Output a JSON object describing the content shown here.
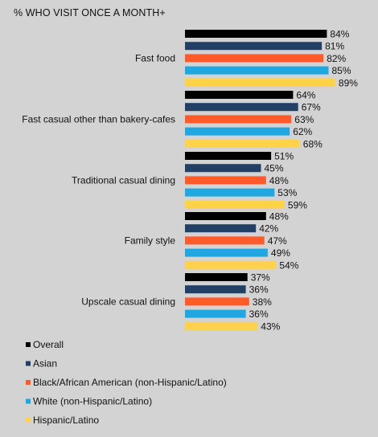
{
  "chart_data": {
    "type": "bar",
    "orientation": "horizontal",
    "title": "% WHO VISIT ONCE A MONTH+",
    "categories": [
      "Fast food",
      "Fast casual other than bakery-cafes",
      "Traditional casual dining",
      "Family style",
      "Upscale casual dining"
    ],
    "series": [
      {
        "name": "Overall",
        "color": "#000000",
        "values": [
          84,
          64,
          51,
          48,
          37
        ]
      },
      {
        "name": "Asian",
        "color": "#223f66",
        "values": [
          81,
          67,
          45,
          42,
          36
        ]
      },
      {
        "name": "Black/African American (non-Hispanic/Latino)",
        "color": "#ff5a2a",
        "values": [
          82,
          63,
          48,
          47,
          38
        ]
      },
      {
        "name": "White (non-Hispanic/Latino)",
        "color": "#1ea7e1",
        "values": [
          85,
          62,
          53,
          49,
          36
        ]
      },
      {
        "name": "Hispanic/Latino",
        "color": "#ffd24a",
        "values": [
          89,
          68,
          59,
          54,
          43
        ]
      }
    ],
    "value_suffix": "%",
    "xlim": [
      0,
      100
    ],
    "grid": false,
    "legend_position": "bottom-left"
  }
}
